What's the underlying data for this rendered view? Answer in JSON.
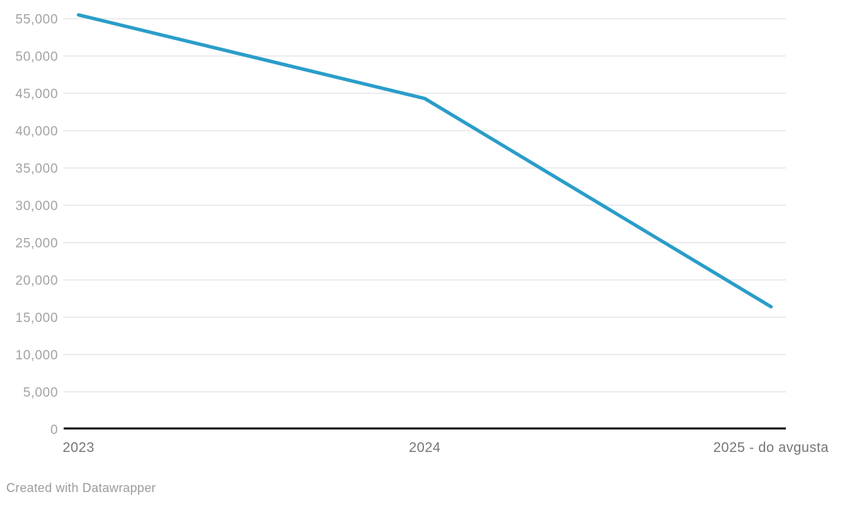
{
  "chart_data": {
    "type": "line",
    "categories": [
      "2023",
      "2024",
      "2025 - do avgusta"
    ],
    "series": [
      {
        "name": "value",
        "values": [
          55500,
          44300,
          16400
        ]
      }
    ],
    "ylim": [
      0,
      55000
    ],
    "ytick_step": 5000,
    "ytick_labels": [
      "0",
      "5,000",
      "10,000",
      "15,000",
      "20,000",
      "25,000",
      "30,000",
      "35,000",
      "40,000",
      "45,000",
      "50,000",
      "55,000"
    ],
    "grid": "horizontal",
    "legend": "none",
    "line_color": "#2a9dc9"
  },
  "colors": {
    "line": "#2a9dc9",
    "grid": "#ececec",
    "axis_baseline": "#141414",
    "y_label": "#a3a3a3",
    "x_label": "#767676",
    "footer_text": "#9b9b9b",
    "background": "#ffffff"
  },
  "footer": {
    "attribution": "Created with Datawrapper"
  }
}
